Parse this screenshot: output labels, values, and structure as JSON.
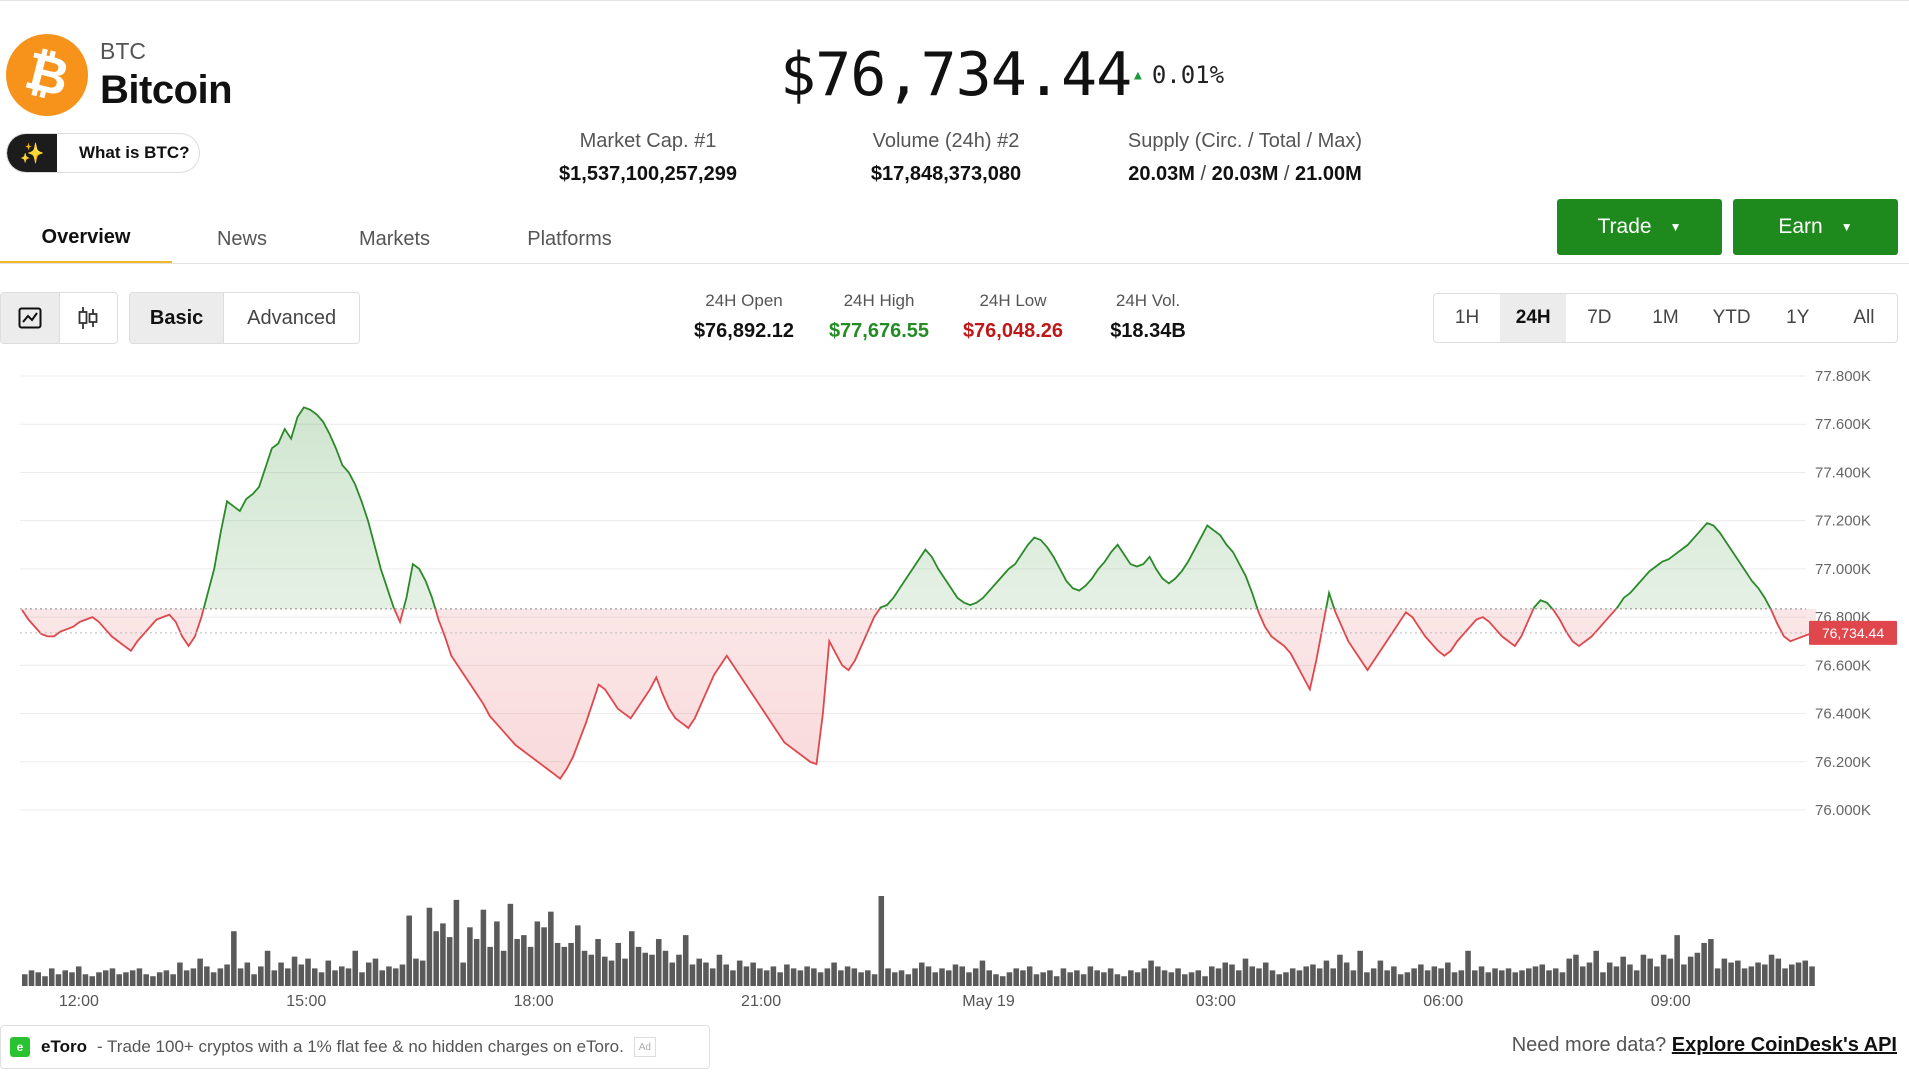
{
  "coin": {
    "symbol": "BTC",
    "name": "Bitcoin",
    "logo_glyph": "₿",
    "logo_color": "#f7931a",
    "what_is_label": "What is BTC?",
    "price": "$76,734.44",
    "change_pct": "0.01%",
    "change_direction": "up"
  },
  "header_stats": [
    {
      "label": "Market Cap. #1",
      "value": "$1,537,100,257,299"
    },
    {
      "label": "Volume (24h) #2",
      "value": "$17,848,373,080"
    },
    {
      "label": "Supply (Circ. / Total / Max)",
      "parts": [
        "20.03M",
        "20.03M",
        "21.00M"
      ],
      "separator": "/"
    }
  ],
  "tabs": [
    {
      "label": "Overview",
      "active": true
    },
    {
      "label": "News",
      "active": false
    },
    {
      "label": "Markets",
      "active": false
    },
    {
      "label": "Platforms",
      "active": false
    }
  ],
  "actions": {
    "trade_label": "Trade",
    "earn_label": "Earn",
    "button_color": "#1e8a1e"
  },
  "chart_controls": {
    "chart_type_icons": [
      "line-chart-icon",
      "candlestick-icon"
    ],
    "modes": [
      {
        "label": "Basic",
        "active": true
      },
      {
        "label": "Advanced",
        "active": false
      }
    ],
    "ranges": [
      {
        "label": "1H",
        "active": false
      },
      {
        "label": "24H",
        "active": true
      },
      {
        "label": "7D",
        "active": false
      },
      {
        "label": "1M",
        "active": false
      },
      {
        "label": "YTD",
        "active": false
      },
      {
        "label": "1Y",
        "active": false
      },
      {
        "label": "All",
        "active": false
      }
    ]
  },
  "day_stats": [
    {
      "label": "24H Open",
      "value": "$76,892.12",
      "color": "#111111"
    },
    {
      "label": "24H High",
      "value": "$77,676.55",
      "color": "#238c23"
    },
    {
      "label": "24H Low",
      "value": "$76,048.26",
      "color": "#c01818"
    },
    {
      "label": "24H Vol.",
      "value": "$18.34B",
      "color": "#111111"
    }
  ],
  "chart_data": {
    "type": "area",
    "baseline": 76834,
    "current_price_label": "76,734.44",
    "colors": {
      "up": "#2a8a2a",
      "down": "#e0474c"
    },
    "ylim": [
      76000,
      77800
    ],
    "yticks": [
      "77.800K",
      "77.600K",
      "77.400K",
      "77.200K",
      "77.000K",
      "76.800K",
      "76.600K",
      "76.400K",
      "76.200K",
      "76.000K"
    ],
    "xticks": [
      "12:00",
      "15:00",
      "18:00",
      "21:00",
      "May 19",
      "03:00",
      "06:00",
      "09:00"
    ],
    "x_start": "11:15",
    "x_end": "10:55",
    "series": [
      {
        "values": [
          76830,
          76790,
          76760,
          76730,
          76720,
          76720,
          76740,
          76750,
          76760,
          76780,
          76790,
          76800,
          76780,
          76750,
          76720,
          76700,
          76680,
          76660,
          76700,
          76730,
          76760,
          76790,
          76800,
          76810,
          76780,
          76720,
          76680,
          76720,
          76800,
          76900,
          77000,
          77150,
          77280,
          77260,
          77240,
          77290,
          77310,
          77340,
          77420,
          77500,
          77520,
          77580,
          77540,
          77630,
          77670,
          77660,
          77640,
          77610,
          77560,
          77500,
          77430,
          77400,
          77350,
          77280,
          77200,
          77100,
          77000,
          76920,
          76840,
          76780,
          76880,
          77020,
          77000,
          76950,
          76880,
          76790,
          76720,
          76640,
          76600,
          76560,
          76520,
          76480,
          76440,
          76390,
          76360,
          76330,
          76300,
          76270,
          76250,
          76230,
          76210,
          76190,
          76170,
          76150,
          76130,
          76170,
          76220,
          76290,
          76360,
          76440,
          76520,
          76500,
          76460,
          76420,
          76400,
          76380,
          76420,
          76460,
          76500,
          76550,
          76480,
          76420,
          76380,
          76360,
          76340,
          76380,
          76440,
          76500,
          76560,
          76600,
          76640,
          76600,
          76560,
          76520,
          76480,
          76440,
          76400,
          76360,
          76320,
          76280,
          76260,
          76240,
          76220,
          76200,
          76190,
          76400,
          76700,
          76650,
          76600,
          76580,
          76620,
          76680,
          76740,
          76800,
          76840,
          76850,
          76880,
          76920,
          76960,
          77000,
          77040,
          77080,
          77050,
          77000,
          76960,
          76920,
          76880,
          76860,
          76850,
          76860,
          76880,
          76910,
          76940,
          76970,
          77000,
          77020,
          77060,
          77100,
          77130,
          77120,
          77090,
          77050,
          77000,
          76950,
          76920,
          76910,
          76930,
          76960,
          77000,
          77030,
          77070,
          77100,
          77060,
          77020,
          77010,
          77020,
          77050,
          77000,
          76960,
          76940,
          76960,
          76990,
          77030,
          77080,
          77130,
          77180,
          77160,
          77140,
          77100,
          77070,
          77020,
          76970,
          76900,
          76820,
          76760,
          76720,
          76700,
          76680,
          76650,
          76600,
          76550,
          76500,
          76620,
          76760,
          76900,
          76820,
          76760,
          76700,
          76660,
          76620,
          76580,
          76620,
          76660,
          76700,
          76740,
          76780,
          76820,
          76800,
          76760,
          76720,
          76690,
          76660,
          76640,
          76660,
          76700,
          76730,
          76760,
          76790,
          76800,
          76780,
          76750,
          76720,
          76700,
          76680,
          76720,
          76780,
          76840,
          76870,
          76860,
          76830,
          76790,
          76740,
          76700,
          76680,
          76700,
          76720,
          76750,
          76780,
          76810,
          76840,
          76880,
          76900,
          76930,
          76960,
          76990,
          77010,
          77030,
          77040,
          77060,
          77080,
          77100,
          77130,
          77160,
          77190,
          77180,
          77150,
          77110,
          77070,
          77030,
          76990,
          76950,
          76920,
          76880,
          76830,
          76770,
          76720,
          76700,
          76710,
          76720,
          76730,
          76734.44
        ]
      }
    ],
    "volume": [
      6,
      8,
      7,
      5,
      9,
      6,
      8,
      7,
      10,
      6,
      5,
      7,
      8,
      9,
      6,
      7,
      8,
      9,
      6,
      5,
      7,
      8,
      6,
      12,
      8,
      9,
      14,
      10,
      7,
      9,
      11,
      28,
      9,
      12,
      6,
      10,
      18,
      8,
      12,
      9,
      15,
      11,
      14,
      9,
      7,
      13,
      8,
      10,
      9,
      18,
      7,
      12,
      14,
      8,
      10,
      9,
      11,
      36,
      14,
      13,
      40,
      28,
      32,
      25,
      44,
      12,
      30,
      24,
      39,
      20,
      33,
      18,
      42,
      24,
      26,
      20,
      33,
      30,
      38,
      22,
      20,
      22,
      31,
      18,
      16,
      24,
      15,
      13,
      22,
      14,
      28,
      20,
      17,
      16,
      24,
      18,
      12,
      16,
      26,
      11,
      14,
      12,
      9,
      16,
      11,
      8,
      13,
      10,
      12,
      9,
      8,
      10,
      7,
      11,
      9,
      8,
      10,
      9,
      7,
      9,
      12,
      8,
      10,
      9,
      7,
      8,
      6,
      46,
      9,
      7,
      8,
      6,
      9,
      12,
      10,
      7,
      9,
      8,
      11,
      10,
      7,
      9,
      13,
      8,
      6,
      5,
      7,
      9,
      8,
      10,
      6,
      7,
      8,
      5,
      9,
      7,
      8,
      6,
      10,
      8,
      7,
      9,
      6,
      5,
      8,
      7,
      9,
      13,
      10,
      8,
      7,
      9,
      6,
      7,
      8,
      5,
      10,
      9,
      12,
      11,
      8,
      14,
      10,
      9,
      12,
      8,
      6,
      7,
      9,
      8,
      10,
      11,
      9,
      13,
      9,
      16,
      12,
      8,
      18,
      7,
      9,
      13,
      8,
      10,
      6,
      7,
      9,
      11,
      8,
      10,
      9,
      12,
      7,
      8,
      18,
      8,
      10,
      7,
      9,
      8,
      9,
      7,
      8,
      9,
      10,
      11,
      8,
      9,
      7,
      14,
      16,
      10,
      12,
      18,
      7,
      12,
      10,
      15,
      11,
      8,
      16,
      14,
      10,
      16,
      14,
      26,
      11,
      15,
      17,
      22,
      24,
      9,
      14,
      12,
      13,
      9,
      10,
      12,
      11,
      16,
      14,
      9,
      11,
      12,
      13,
      10
    ]
  },
  "footer": {
    "ad_logo": "e",
    "ad_brand": "eToro",
    "ad_text": "- Trade 100+ cryptos with a 1% flat fee & no hidden charges on eToro.",
    "ad_tag": "Ad",
    "more_prefix": "Need more data?",
    "more_link": "Explore CoinDesk's API"
  }
}
